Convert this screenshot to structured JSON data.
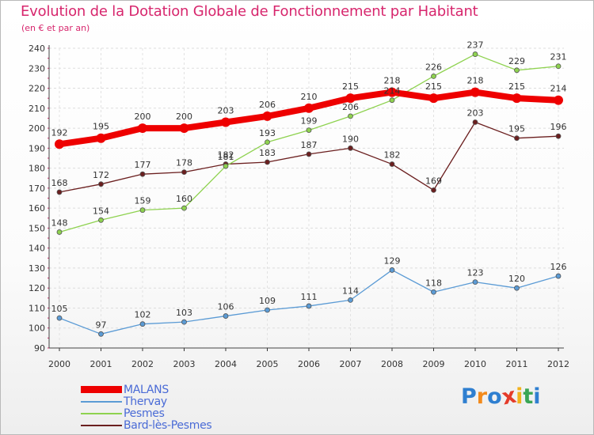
{
  "title": "Evolution de la Dotation Globale de Fonctionnement par Habitant",
  "subtitle": "(en € et par an)",
  "chart_data": {
    "type": "line",
    "title": "Evolution de la Dotation Globale de Fonctionnement par Habitant",
    "subtitle": "(en € et par an)",
    "x": [
      2000,
      2001,
      2002,
      2003,
      2004,
      2005,
      2006,
      2007,
      2008,
      2009,
      2010,
      2011,
      2012
    ],
    "ylim": [
      90,
      240
    ],
    "yticks": [
      90,
      100,
      110,
      120,
      130,
      140,
      150,
      160,
      170,
      180,
      190,
      200,
      210,
      220,
      230,
      240
    ],
    "grid": true,
    "legend_position": "bottom-left",
    "series": [
      {
        "name": "Bard-lès-Pesmes",
        "color": "#6b1f1f",
        "values": [
          168,
          172,
          177,
          178,
          182,
          183,
          187,
          190,
          182,
          169,
          203,
          195,
          196
        ]
      },
      {
        "name": "Pesmes",
        "color": "#8ed24f",
        "values": [
          148,
          154,
          159,
          160,
          181,
          193,
          199,
          206,
          214,
          226,
          237,
          229,
          231
        ]
      },
      {
        "name": "Thervay",
        "color": "#5b9bd5",
        "values": [
          105,
          97,
          102,
          103,
          106,
          109,
          111,
          114,
          129,
          118,
          123,
          120,
          126
        ]
      },
      {
        "name": "MALANS",
        "color": "#ee0000",
        "values": [
          192,
          195,
          200,
          200,
          203,
          206,
          210,
          215,
          218,
          215,
          218,
          215,
          214
        ]
      }
    ],
    "legend_order": [
      "MALANS",
      "Thervay",
      "Pesmes",
      "Bard-lès-Pesmes"
    ]
  },
  "logo": {
    "letters": [
      "P",
      "r",
      "o",
      "x",
      "i",
      "t",
      "i"
    ],
    "colors": [
      "#2f7fd0",
      "#f28a1c",
      "#2f7fd0",
      "#e43b2a",
      "#f2b21c",
      "#3aa655",
      "#2f7fd0"
    ]
  }
}
